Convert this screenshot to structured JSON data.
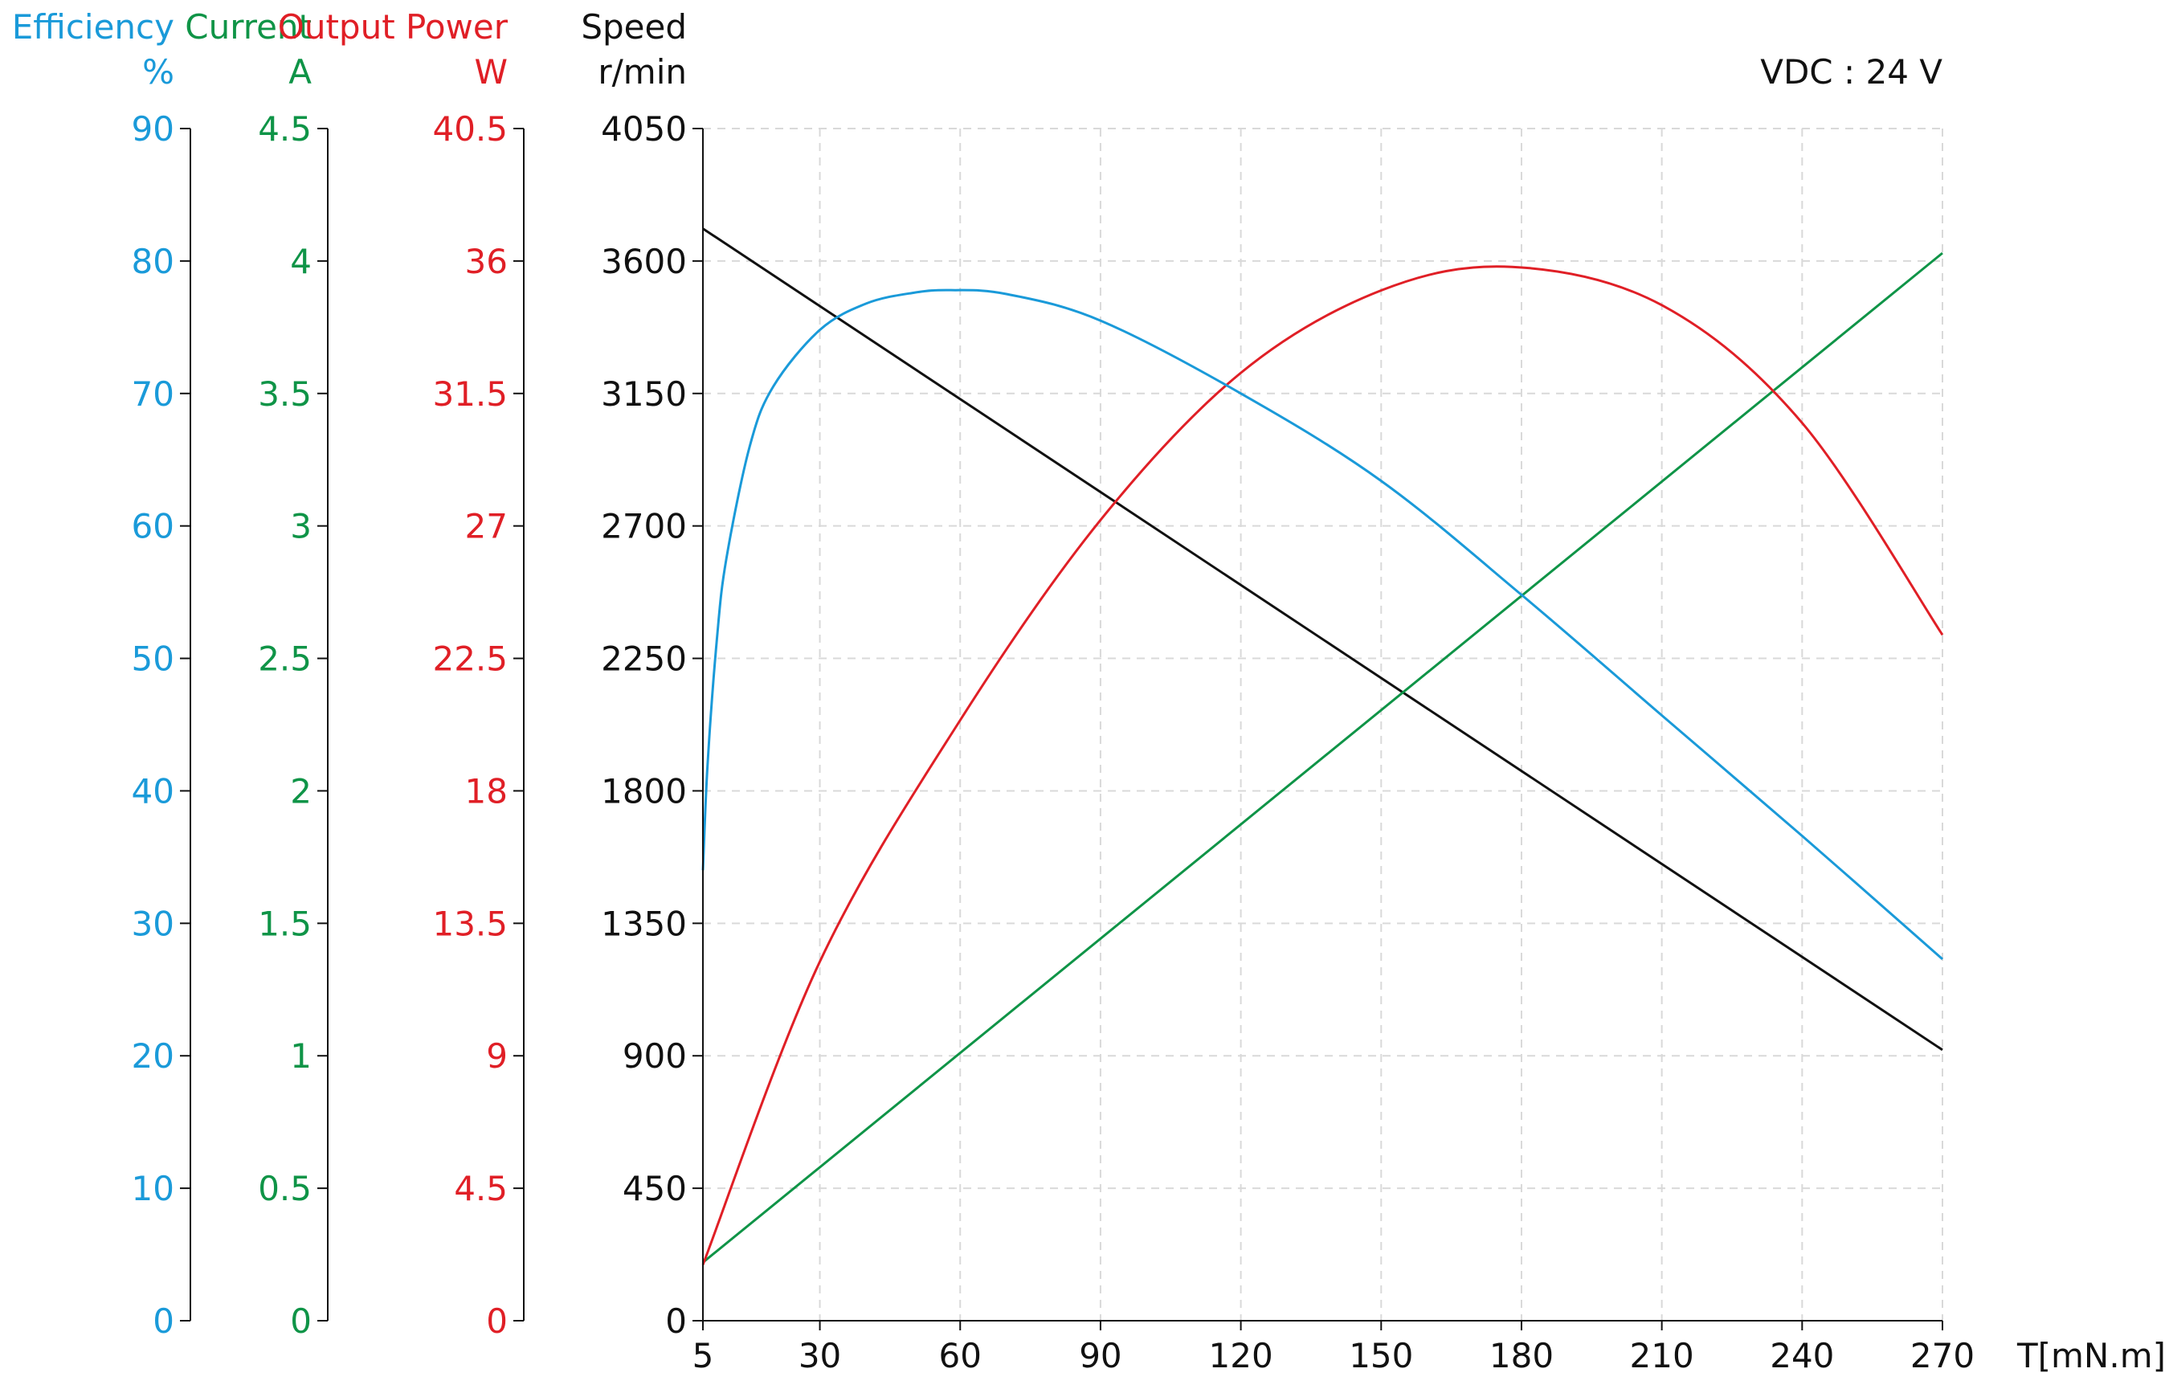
{
  "chart_data": {
    "type": "line",
    "annotation": "VDC : 24 V",
    "x_axis": {
      "label": "T[mN.m]",
      "range": [
        5,
        270
      ],
      "ticks": [
        5,
        30,
        60,
        90,
        120,
        150,
        180,
        210,
        240,
        270
      ]
    },
    "y_axes": [
      {
        "id": "efficiency",
        "title": "Efficiency",
        "unit": "%",
        "color": "#1a9ad9",
        "range": [
          0,
          90
        ],
        "tick_labels": [
          "0",
          "10",
          "20",
          "30",
          "40",
          "50",
          "60",
          "70",
          "80",
          "90"
        ]
      },
      {
        "id": "current",
        "title": "Current",
        "unit": "A",
        "color": "#0f9447",
        "range": [
          0,
          4.5
        ],
        "tick_labels": [
          "0",
          "0.5",
          "1",
          "1.5",
          "2",
          "2.5",
          "3",
          "3.5",
          "4",
          "4.5"
        ]
      },
      {
        "id": "power",
        "title": "Output Power",
        "unit": "W",
        "color": "#e01f26",
        "range": [
          0,
          40.5
        ],
        "tick_labels": [
          "0",
          "4.5",
          "9",
          "13.5",
          "18",
          "22.5",
          "27",
          "31.5",
          "36",
          "40.5"
        ]
      },
      {
        "id": "speed",
        "title": "Speed",
        "unit": "r/min",
        "color": "#111111",
        "range": [
          0,
          4050
        ],
        "tick_labels": [
          "0",
          "450",
          "900",
          "1350",
          "1800",
          "2250",
          "2700",
          "3150",
          "3600",
          "4050"
        ]
      }
    ],
    "grid": true,
    "series": [
      {
        "axis": "speed",
        "color": "#111111",
        "x": [
          5,
          270
        ],
        "y": [
          3710,
          920
        ]
      },
      {
        "axis": "current",
        "color": "#0f9447",
        "x": [
          5,
          270
        ],
        "y": [
          0.22,
          4.03
        ]
      },
      {
        "axis": "power",
        "color": "#e01f26",
        "x": [
          5,
          30,
          60,
          90,
          120,
          150,
          178,
          210,
          240,
          270
        ],
        "y": [
          1.9,
          12.2,
          20.4,
          27.2,
          32.2,
          35.0,
          35.8,
          34.5,
          30.5,
          23.3
        ]
      },
      {
        "axis": "efficiency",
        "color": "#1a9ad9",
        "x": [
          5,
          6,
          8,
          10,
          15,
          20,
          30,
          40,
          50,
          58,
          70,
          90,
          120,
          150,
          180,
          210,
          240,
          270
        ],
        "y": [
          34,
          42,
          51.5,
          57.5,
          66,
          70.5,
          74.8,
          76.8,
          77.6,
          77.8,
          77.5,
          75.5,
          70,
          63.4,
          54.8,
          45.7,
          36.6,
          27.3
        ]
      }
    ]
  }
}
